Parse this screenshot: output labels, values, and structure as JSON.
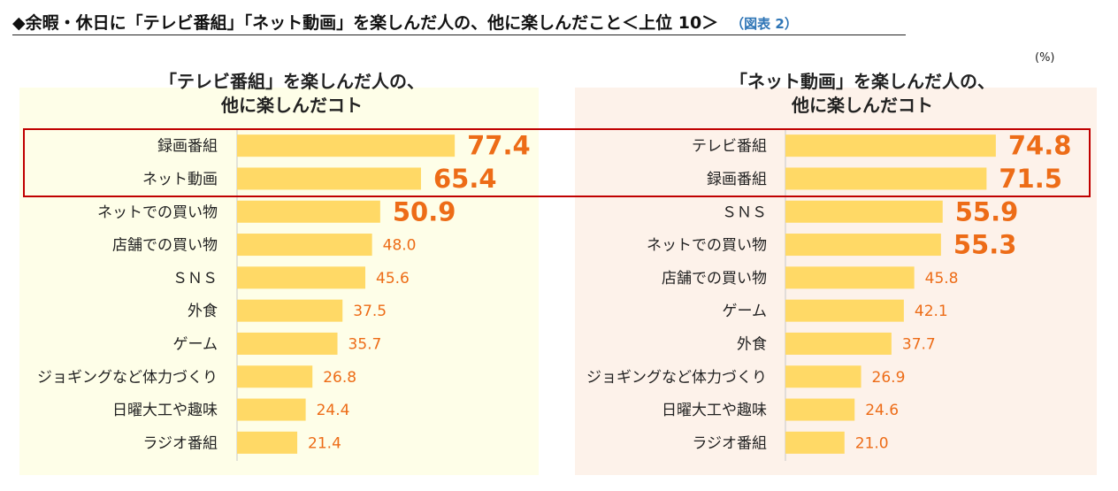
{
  "header": {
    "title": "◆余暇・休日に「テレビ番組」「ネット動画」を楽しんだ人の、他に楽しんだこと＜上位 10＞",
    "figure_ref": "（図表 2）"
  },
  "unit_label": "(%)",
  "colors": {
    "bar": "#ffd966",
    "value_text": "#ed6c17",
    "left_panel_bg": "#fefee8",
    "right_panel_bg": "#fdf2ea",
    "highlight_frame": "#c00000"
  },
  "chart_data": [
    {
      "type": "bar",
      "orientation": "horizontal",
      "title_lines": [
        "「テレビ番組」を楽しんだ人の、",
        "他に楽しんだコト"
      ],
      "categories": [
        "録画番組",
        "ネット動画",
        "ネットでの買い物",
        "店舗での買い物",
        "ＳＮＳ",
        "外食",
        "ゲーム",
        "ジョギングなど体力づくり",
        "日曜大工や趣味",
        "ラジオ番組"
      ],
      "values": [
        77.4,
        65.4,
        50.9,
        48.0,
        45.6,
        37.5,
        35.7,
        26.8,
        24.4,
        21.4
      ],
      "value_labels": [
        "77.4",
        "65.4",
        "50.9",
        "48.0",
        "45.6",
        "37.5",
        "35.7",
        "26.8",
        "24.4",
        "21.4"
      ],
      "emphasized_count": 3,
      "unit": "%",
      "xlim": [
        0,
        100
      ]
    },
    {
      "type": "bar",
      "orientation": "horizontal",
      "title_lines": [
        "「ネット動画」を楽しんだ人の、",
        "他に楽しんだコト"
      ],
      "categories": [
        "テレビ番組",
        "録画番組",
        "ＳＮＳ",
        "ネットでの買い物",
        "店舗での買い物",
        "ゲーム",
        "外食",
        "ジョギングなど体力づくり",
        "日曜大工や趣味",
        "ラジオ番組"
      ],
      "values": [
        74.8,
        71.5,
        55.9,
        55.3,
        45.8,
        42.1,
        37.7,
        26.9,
        24.6,
        21.0
      ],
      "value_labels": [
        "74.8",
        "71.5",
        "55.9",
        "55.3",
        "45.8",
        "42.1",
        "37.7",
        "26.9",
        "24.6",
        "21.0"
      ],
      "emphasized_count": 4,
      "unit": "%",
      "xlim": [
        0,
        100
      ]
    }
  ]
}
